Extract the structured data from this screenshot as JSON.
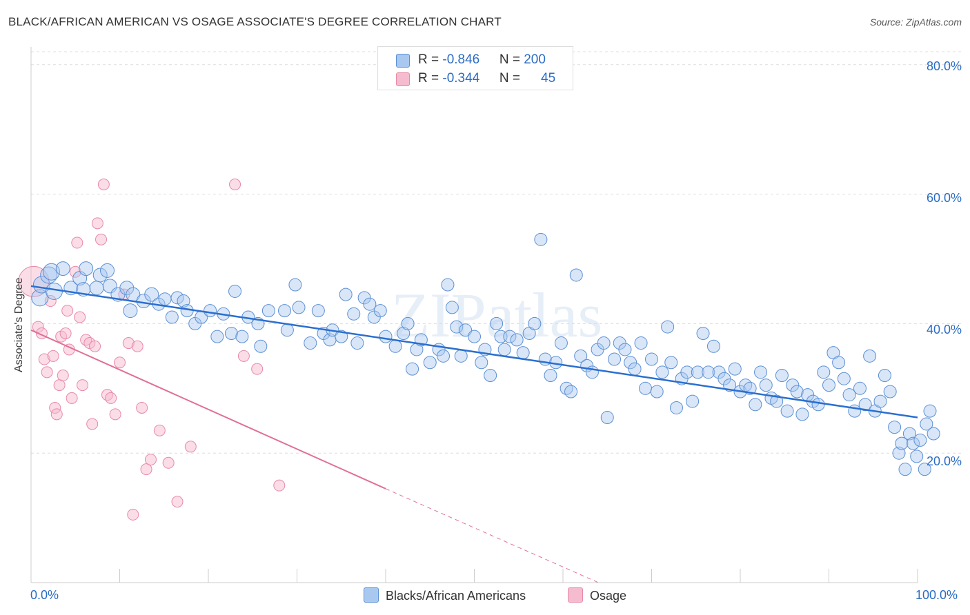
{
  "title": "BLACK/AFRICAN AMERICAN VS OSAGE ASSOCIATE'S DEGREE CORRELATION CHART",
  "source": "Source: ZipAtlas.com",
  "watermark": "ZIPatlas",
  "legend_top": {
    "rows": [
      {
        "r_label": "R = ",
        "r_value": "-0.846",
        "n_label": "N = ",
        "n_value": "200"
      },
      {
        "r_label": "R = ",
        "r_value": "-0.344",
        "n_label": "N = ",
        "n_value": "45"
      }
    ]
  },
  "colors": {
    "blue_fill": "#a9c8ef",
    "blue_stroke": "#5b8fd4",
    "blue_line": "#2a6fcf",
    "pink_fill": "#f5bcd0",
    "pink_stroke": "#e889a8",
    "pink_line": "#e07098",
    "tick_text": "#2b6cc4",
    "grid": "#dddddd"
  },
  "chart_data": {
    "type": "scatter",
    "title": "BLACK/AFRICAN AMERICAN VS OSAGE ASSOCIATE'S DEGREE CORRELATION CHART",
    "xlabel": "",
    "ylabel": "Associate's Degree",
    "xlim": [
      0,
      100
    ],
    "ylim": [
      0,
      82
    ],
    "x_tick_labels": [
      "0.0%",
      "100.0%"
    ],
    "y_ticks": [
      20,
      40,
      60,
      80
    ],
    "y_tick_labels": [
      "20.0%",
      "40.0%",
      "60.0%",
      "80.0%"
    ],
    "grid": "horizontal dashed",
    "legend_position": "top-center and bottom",
    "series": [
      {
        "name": "Blacks/African Americans",
        "color": "#a9c8ef",
        "R": -0.846,
        "N": 200,
        "trend": {
          "x": [
            0,
            100
          ],
          "y": [
            45.8,
            25.5
          ]
        },
        "points": [
          [
            1.0,
            44.0
          ],
          [
            1.2,
            46.0
          ],
          [
            2.0,
            47.5
          ],
          [
            2.3,
            48.0
          ],
          [
            2.6,
            45.0
          ],
          [
            3.6,
            48.5
          ],
          [
            4.5,
            45.5
          ],
          [
            5.5,
            47.0
          ],
          [
            6.2,
            48.5
          ],
          [
            5.9,
            45.3
          ],
          [
            7.4,
            45.5
          ],
          [
            7.8,
            47.5
          ],
          [
            8.6,
            48.2
          ],
          [
            8.9,
            45.8
          ],
          [
            9.8,
            44.5
          ],
          [
            10.8,
            45.5
          ],
          [
            11.5,
            44.5
          ],
          [
            11.2,
            42.0
          ],
          [
            12.7,
            43.5
          ],
          [
            13.6,
            44.5
          ],
          [
            14.4,
            43.0
          ],
          [
            15.1,
            43.8
          ],
          [
            15.9,
            41.0
          ],
          [
            16.5,
            44.0
          ],
          [
            17.2,
            43.5
          ],
          [
            17.6,
            42.0
          ],
          [
            18.5,
            40.0
          ],
          [
            19.2,
            41.0
          ],
          [
            20.2,
            42.0
          ],
          [
            21.0,
            38.0
          ],
          [
            21.7,
            41.5
          ],
          [
            22.6,
            38.5
          ],
          [
            23.0,
            45.0
          ],
          [
            23.8,
            38.0
          ],
          [
            24.5,
            41.0
          ],
          [
            25.6,
            40.0
          ],
          [
            25.9,
            36.5
          ],
          [
            26.8,
            42.0
          ],
          [
            28.6,
            42.0
          ],
          [
            28.9,
            39.0
          ],
          [
            29.8,
            46.0
          ],
          [
            30.2,
            42.5
          ],
          [
            31.5,
            37.0
          ],
          [
            32.4,
            42.0
          ],
          [
            33.0,
            38.5
          ],
          [
            33.7,
            37.5
          ],
          [
            34.0,
            39.0
          ],
          [
            35.0,
            38.0
          ],
          [
            35.5,
            44.5
          ],
          [
            36.4,
            41.5
          ],
          [
            36.8,
            37.0
          ],
          [
            37.6,
            44.0
          ],
          [
            38.2,
            43.0
          ],
          [
            38.7,
            41.0
          ],
          [
            39.4,
            42.0
          ],
          [
            40.0,
            38.0
          ],
          [
            41.1,
            36.5
          ],
          [
            42.0,
            38.5
          ],
          [
            42.5,
            40.0
          ],
          [
            43.0,
            33.0
          ],
          [
            43.5,
            36.0
          ],
          [
            44.0,
            37.5
          ],
          [
            45.0,
            34.0
          ],
          [
            46.0,
            36.0
          ],
          [
            46.5,
            35.0
          ],
          [
            47.0,
            46.0
          ],
          [
            47.5,
            42.5
          ],
          [
            48.0,
            39.5
          ],
          [
            48.5,
            35.0
          ],
          [
            49.0,
            39.0
          ],
          [
            50.0,
            38.0
          ],
          [
            50.8,
            34.0
          ],
          [
            51.2,
            36.0
          ],
          [
            51.8,
            32.0
          ],
          [
            52.5,
            40.0
          ],
          [
            53.0,
            38.0
          ],
          [
            53.4,
            36.0
          ],
          [
            54.0,
            38.0
          ],
          [
            54.8,
            37.5
          ],
          [
            55.5,
            35.5
          ],
          [
            56.2,
            38.5
          ],
          [
            56.8,
            40.0
          ],
          [
            57.5,
            53.0
          ],
          [
            58.0,
            34.5
          ],
          [
            58.6,
            32.0
          ],
          [
            59.2,
            34.0
          ],
          [
            59.8,
            37.0
          ],
          [
            60.4,
            30.0
          ],
          [
            60.9,
            29.5
          ],
          [
            61.5,
            47.5
          ],
          [
            62.0,
            35.0
          ],
          [
            62.7,
            33.5
          ],
          [
            63.3,
            32.5
          ],
          [
            63.9,
            36.0
          ],
          [
            64.6,
            37.0
          ],
          [
            65.0,
            25.5
          ],
          [
            65.8,
            34.5
          ],
          [
            66.4,
            37.0
          ],
          [
            67.0,
            36.0
          ],
          [
            67.6,
            34.0
          ],
          [
            68.1,
            33.0
          ],
          [
            68.8,
            37.0
          ],
          [
            69.3,
            30.0
          ],
          [
            70.0,
            34.5
          ],
          [
            70.6,
            29.5
          ],
          [
            71.2,
            32.5
          ],
          [
            71.8,
            39.5
          ],
          [
            72.2,
            34.0
          ],
          [
            72.8,
            27.0
          ],
          [
            73.4,
            31.5
          ],
          [
            74.0,
            32.5
          ],
          [
            74.6,
            28.0
          ],
          [
            75.2,
            32.5
          ],
          [
            75.8,
            38.5
          ],
          [
            76.4,
            32.5
          ],
          [
            77.0,
            36.5
          ],
          [
            77.6,
            32.5
          ],
          [
            78.2,
            31.5
          ],
          [
            78.8,
            30.5
          ],
          [
            79.4,
            33.0
          ],
          [
            80.0,
            29.5
          ],
          [
            80.6,
            30.5
          ],
          [
            81.1,
            30.0
          ],
          [
            81.7,
            27.5
          ],
          [
            82.3,
            32.5
          ],
          [
            82.9,
            30.5
          ],
          [
            83.5,
            28.5
          ],
          [
            84.1,
            28.0
          ],
          [
            84.7,
            32.0
          ],
          [
            85.3,
            26.5
          ],
          [
            85.9,
            30.5
          ],
          [
            86.4,
            29.5
          ],
          [
            87.0,
            26.0
          ],
          [
            87.6,
            29.0
          ],
          [
            88.2,
            28.0
          ],
          [
            88.8,
            27.5
          ],
          [
            89.4,
            32.5
          ],
          [
            90.0,
            30.5
          ],
          [
            90.5,
            35.5
          ],
          [
            91.1,
            34.0
          ],
          [
            91.7,
            31.5
          ],
          [
            92.3,
            29.0
          ],
          [
            92.9,
            26.5
          ],
          [
            93.5,
            30.0
          ],
          [
            94.1,
            27.5
          ],
          [
            94.6,
            35.0
          ],
          [
            95.2,
            26.5
          ],
          [
            95.8,
            28.0
          ],
          [
            96.3,
            32.0
          ],
          [
            96.9,
            29.5
          ],
          [
            97.4,
            24.0
          ],
          [
            97.9,
            20.0
          ],
          [
            98.2,
            21.5
          ],
          [
            98.6,
            17.5
          ],
          [
            99.1,
            23.0
          ],
          [
            99.5,
            21.5
          ],
          [
            99.9,
            19.5
          ],
          [
            100.3,
            22.0
          ],
          [
            100.8,
            17.5
          ],
          [
            101.0,
            24.5
          ],
          [
            101.4,
            26.5
          ],
          [
            101.8,
            23.0
          ]
        ]
      },
      {
        "name": "Osage",
        "color": "#f5bcd0",
        "R": -0.344,
        "N": 45,
        "trend": {
          "x": [
            0,
            40
          ],
          "y": [
            39.0,
            14.5
          ]
        },
        "trend_dashed": {
          "x": [
            40,
            64
          ],
          "y": [
            14.5,
            0
          ]
        },
        "points": [
          [
            0.3,
            46.5
          ],
          [
            0.8,
            39.5
          ],
          [
            1.2,
            38.5
          ],
          [
            1.5,
            34.5
          ],
          [
            1.8,
            32.5
          ],
          [
            2.2,
            43.5
          ],
          [
            2.5,
            35.0
          ],
          [
            2.7,
            27.0
          ],
          [
            2.9,
            26.0
          ],
          [
            3.2,
            30.5
          ],
          [
            3.4,
            38.0
          ],
          [
            3.6,
            32.0
          ],
          [
            3.9,
            38.5
          ],
          [
            4.1,
            42.0
          ],
          [
            4.3,
            36.0
          ],
          [
            4.6,
            28.5
          ],
          [
            5.0,
            48.0
          ],
          [
            5.2,
            52.5
          ],
          [
            5.5,
            41.0
          ],
          [
            5.8,
            30.5
          ],
          [
            6.2,
            37.5
          ],
          [
            6.6,
            37.0
          ],
          [
            6.9,
            24.5
          ],
          [
            7.2,
            36.5
          ],
          [
            7.5,
            55.5
          ],
          [
            7.9,
            53.0
          ],
          [
            8.2,
            61.5
          ],
          [
            8.6,
            29.0
          ],
          [
            9.0,
            28.5
          ],
          [
            9.5,
            26.0
          ],
          [
            10.0,
            34.0
          ],
          [
            10.5,
            44.5
          ],
          [
            11.0,
            37.0
          ],
          [
            11.5,
            10.5
          ],
          [
            12.0,
            36.5
          ],
          [
            12.5,
            27.0
          ],
          [
            13.0,
            17.5
          ],
          [
            13.5,
            19.0
          ],
          [
            14.5,
            23.5
          ],
          [
            15.5,
            18.5
          ],
          [
            16.5,
            12.5
          ],
          [
            18.0,
            21.0
          ],
          [
            23.0,
            61.5
          ],
          [
            24.0,
            35.0
          ],
          [
            25.5,
            33.0
          ],
          [
            28.0,
            15.0
          ]
        ]
      }
    ]
  },
  "legend_bottom": [
    {
      "label": "Blacks/African Americans",
      "color": "#a9c8ef"
    },
    {
      "label": "Osage",
      "color": "#f5bcd0"
    }
  ]
}
